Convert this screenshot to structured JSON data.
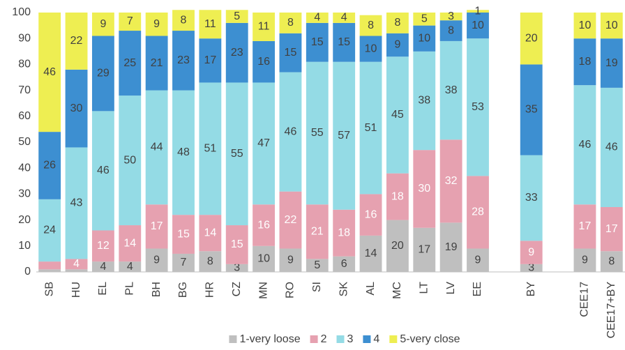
{
  "chart_data": {
    "type": "stacked_bar",
    "categories": [
      "SB",
      "HU",
      "EL",
      "PL",
      "BH",
      "BG",
      "HR",
      "CZ",
      "MN",
      "RO",
      "SI",
      "SK",
      "AL",
      "MC",
      "LT",
      "LV",
      "EE",
      null,
      "BY",
      null,
      "CEE17",
      "CEE17+BY"
    ],
    "series": [
      {
        "name": "1-very loose",
        "color": "#bfbfbf",
        "values": [
          1,
          1,
          4,
          4,
          9,
          7,
          8,
          3,
          10,
          9,
          5,
          6,
          14,
          20,
          17,
          19,
          9,
          null,
          3,
          null,
          9,
          8
        ],
        "value_labels": [
          null,
          null,
          "4",
          "4",
          "9",
          "7",
          "8",
          "3",
          "10",
          "9",
          "5",
          "6",
          "14",
          "20",
          "17",
          "19",
          "9",
          null,
          "3",
          null,
          "9",
          "8"
        ]
      },
      {
        "name": "2",
        "color": "#e6a1b0",
        "values": [
          3,
          4,
          12,
          14,
          17,
          15,
          14,
          15,
          16,
          22,
          21,
          18,
          16,
          18,
          30,
          32,
          28,
          null,
          9,
          null,
          17,
          17
        ],
        "value_labels": [
          null,
          "4",
          "12",
          "14",
          "17",
          "15",
          "14",
          "15",
          "16",
          "22",
          "21",
          "18",
          "16",
          "18",
          "30",
          "32",
          "28",
          null,
          "9",
          null,
          "17",
          "17"
        ]
      },
      {
        "name": "3",
        "color": "#94dbe5",
        "values": [
          24,
          43,
          46,
          50,
          44,
          48,
          51,
          55,
          47,
          46,
          55,
          57,
          51,
          45,
          38,
          38,
          53,
          null,
          33,
          null,
          46,
          46
        ],
        "value_labels": [
          "24",
          "43",
          "46",
          "50",
          "44",
          "48",
          "51",
          "55",
          "47",
          "46",
          "55",
          "57",
          "51",
          "45",
          "38",
          "38",
          "53",
          null,
          "33",
          null,
          "46",
          "46"
        ]
      },
      {
        "name": "4",
        "color": "#3d8fd1",
        "values": [
          26,
          30,
          29,
          25,
          21,
          23,
          17,
          23,
          16,
          15,
          15,
          15,
          10,
          9,
          10,
          8,
          10,
          null,
          35,
          null,
          18,
          19
        ],
        "value_labels": [
          "26",
          "30",
          "29",
          "25",
          "21",
          "23",
          "17",
          "23",
          "16",
          "15",
          "15",
          "15",
          "10",
          "9",
          "10",
          "8",
          "10",
          null,
          "35",
          null,
          "18",
          "19"
        ]
      },
      {
        "name": "5-very close",
        "color": "#eeee52",
        "values": [
          46,
          22,
          9,
          7,
          9,
          8,
          11,
          5,
          11,
          8,
          4,
          4,
          8,
          8,
          5,
          3,
          1,
          null,
          20,
          null,
          10,
          10
        ],
        "value_labels": [
          "46",
          "22",
          "9",
          "7",
          "9",
          "8",
          "11",
          "5",
          "11",
          "8",
          "4",
          "4",
          "8",
          "8",
          "5",
          "3",
          "1",
          null,
          "20",
          null,
          "10",
          "10"
        ]
      }
    ],
    "ylim": [
      0,
      100
    ],
    "yticks": [
      0,
      10,
      20,
      30,
      40,
      50,
      60,
      70,
      80,
      90,
      100
    ],
    "grid": false,
    "legend": "bottom"
  }
}
